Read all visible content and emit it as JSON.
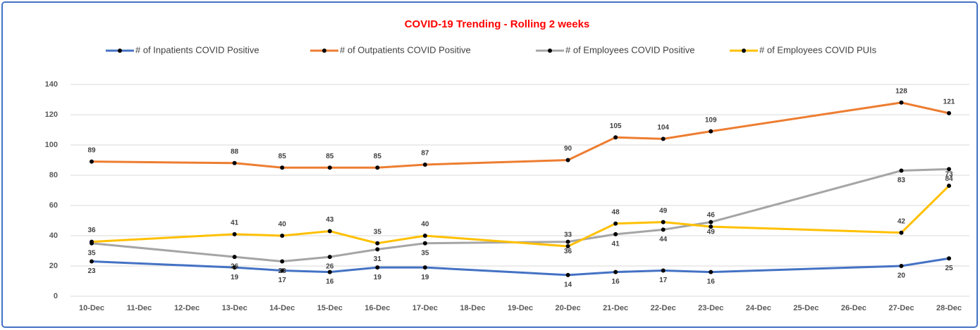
{
  "chart_data": {
    "type": "line",
    "title": "COVID-19 Trending - Rolling 2 weeks",
    "categories": [
      "10-Dec",
      "11-Dec",
      "12-Dec",
      "13-Dec",
      "14-Dec",
      "15-Dec",
      "16-Dec",
      "17-Dec",
      "18-Dec",
      "19-Dec",
      "20-Dec",
      "21-Dec",
      "22-Dec",
      "23-Dec",
      "24-Dec",
      "25-Dec",
      "26-Dec",
      "27-Dec",
      "28-Dec"
    ],
    "x": [
      "10-Dec",
      "13-Dec",
      "14-Dec",
      "15-Dec",
      "16-Dec",
      "17-Dec",
      "20-Dec",
      "21-Dec",
      "22-Dec",
      "23-Dec",
      "27-Dec",
      "28-Dec"
    ],
    "series": [
      {
        "name": "# of Inpatients COVID Positive",
        "color": "#4472c4",
        "values": [
          23,
          19,
          17,
          16,
          19,
          19,
          14,
          16,
          17,
          16,
          20,
          25
        ]
      },
      {
        "name": "# of Outpatients COVID Positive",
        "color": "#ed7d31",
        "values": [
          89,
          88,
          85,
          85,
          85,
          87,
          90,
          105,
          104,
          109,
          128,
          121
        ]
      },
      {
        "name": "# of Employees COVID Positive",
        "color": "#a5a5a5",
        "values": [
          35,
          26,
          23,
          26,
          31,
          35,
          36,
          41,
          44,
          49,
          83,
          84
        ]
      },
      {
        "name": "# of Employees COVID PUIs",
        "color": "#ffc000",
        "values": [
          36,
          41,
          40,
          43,
          35,
          40,
          33,
          48,
          49,
          46,
          42,
          73
        ]
      }
    ],
    "ylim": [
      0,
      140
    ],
    "yticks": [
      0,
      20,
      40,
      60,
      80,
      100,
      120,
      140
    ],
    "grid": true,
    "legend": "top"
  }
}
